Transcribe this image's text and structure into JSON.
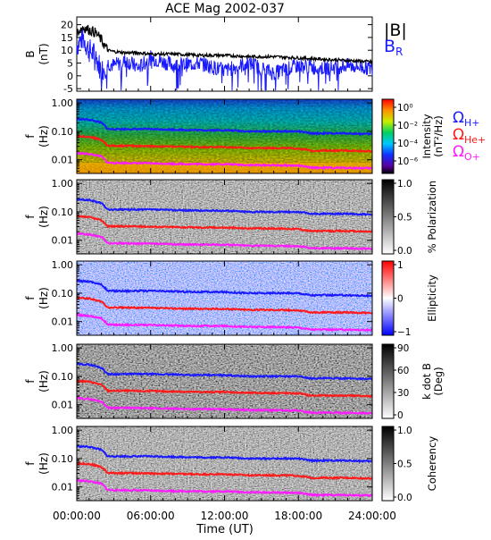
{
  "title": "ACE Mag 2002-037",
  "x_axis": {
    "label": "Time (UT)",
    "ticks": [
      "00:00:00",
      "06:00:00",
      "12:00:00",
      "18:00:00",
      "24:00:00"
    ]
  },
  "colors": {
    "B_magnitude": "#000000",
    "B_R": "#1a1aff",
    "omega_H": "#1a1aff",
    "omega_He": "#ff1a1a",
    "omega_O": "#ff1aff"
  },
  "chart_data": [
    {
      "type": "line",
      "panel": "B",
      "ylabel": [
        "B",
        "(nT)"
      ],
      "ytick_labels": [
        "20",
        "15",
        "10",
        "5",
        "0",
        "-5"
      ],
      "ylim": [
        -6,
        23
      ],
      "xlim_hours": [
        0,
        24
      ],
      "legend": [
        "|B|",
        "BR"
      ],
      "series": [
        {
          "name": "|B|",
          "x": [
            0,
            0.5,
            1,
            1.5,
            2,
            2.5,
            3,
            4,
            5,
            6,
            8,
            10,
            12,
            14,
            16,
            18,
            20,
            22,
            24
          ],
          "values": [
            17,
            19,
            18,
            17,
            14,
            10,
            9.5,
            9,
            9,
            8.5,
            8.5,
            8,
            8,
            7.5,
            7.5,
            7,
            6.5,
            6,
            5.5
          ]
        },
        {
          "name": "BR",
          "x": [
            0,
            0.5,
            1,
            1.5,
            2,
            2.5,
            3,
            4,
            5,
            6,
            8,
            10,
            12,
            14,
            16,
            18,
            20,
            22,
            24
          ],
          "values": [
            12,
            15,
            10,
            8,
            2,
            5,
            4,
            6,
            3,
            7,
            4,
            5,
            2,
            5,
            1,
            4,
            3,
            4,
            3
          ]
        }
      ]
    },
    {
      "type": "heatmap",
      "panel": "Intensity",
      "ylabel": [
        "f",
        "(Hz)"
      ],
      "ytick_labels": [
        "1.00",
        "0.10",
        "0.01"
      ],
      "ylim": [
        0.003,
        1.3
      ],
      "colorbar_label": [
        "Intensity",
        "(nT²/Hz)"
      ],
      "colorbar_ticks": [
        "10⁰",
        "10⁻²",
        "10⁻⁴",
        "10⁻⁶"
      ],
      "legend": [
        "ΩH+",
        "ΩHe+",
        "ΩO+"
      ]
    },
    {
      "type": "heatmap",
      "panel": "Polarization",
      "ylabel": [
        "f",
        "(Hz)"
      ],
      "ytick_labels": [
        "1.00",
        "0.10",
        "0.01"
      ],
      "colorbar_label": [
        "% Polarization"
      ],
      "colorbar_ticks": [
        "1.0",
        "0.5",
        "0.0"
      ]
    },
    {
      "type": "heatmap",
      "panel": "Ellipticity",
      "ylabel": [
        "f",
        "(Hz)"
      ],
      "ytick_labels": [
        "1.00",
        "0.10",
        "0.01"
      ],
      "colorbar_label": [
        "Ellipticity"
      ],
      "colorbar_ticks": [
        "1",
        "0",
        "−1"
      ]
    },
    {
      "type": "heatmap",
      "panel": "k dot B",
      "ylabel": [
        "f",
        "(Hz)"
      ],
      "ytick_labels": [
        "1.00",
        "0.10",
        "0.01"
      ],
      "colorbar_label": [
        "k dot B",
        "(Deg)"
      ],
      "colorbar_ticks": [
        "90",
        "60",
        "30",
        "0"
      ]
    },
    {
      "type": "heatmap",
      "panel": "Coherency",
      "ylabel": [
        "f",
        "(Hz)"
      ],
      "ytick_labels": [
        "1.00",
        "0.10",
        "0.01"
      ],
      "colorbar_label": [
        "Coherency"
      ],
      "colorbar_ticks": [
        "1.0",
        "0.5",
        "0.0"
      ]
    },
    {
      "type": "line",
      "panel": "gyrofrequencies",
      "x": [
        0,
        1,
        2,
        2.5,
        4,
        6,
        8,
        10,
        12,
        14,
        16,
        18,
        19,
        20,
        22,
        24
      ],
      "series": [
        {
          "name": "ΩH+",
          "values": [
            0.27,
            0.26,
            0.2,
            0.12,
            0.12,
            0.12,
            0.115,
            0.11,
            0.11,
            0.1,
            0.1,
            0.1,
            0.085,
            0.085,
            0.085,
            0.08
          ]
        },
        {
          "name": "ΩHe+",
          "values": [
            0.068,
            0.065,
            0.05,
            0.031,
            0.031,
            0.03,
            0.029,
            0.028,
            0.028,
            0.026,
            0.026,
            0.025,
            0.021,
            0.021,
            0.021,
            0.02
          ]
        },
        {
          "name": "ΩO+",
          "values": [
            0.017,
            0.016,
            0.013,
            0.0078,
            0.0077,
            0.0075,
            0.0072,
            0.007,
            0.007,
            0.0065,
            0.0064,
            0.0062,
            0.0053,
            0.0052,
            0.0052,
            0.005
          ]
        }
      ]
    }
  ]
}
